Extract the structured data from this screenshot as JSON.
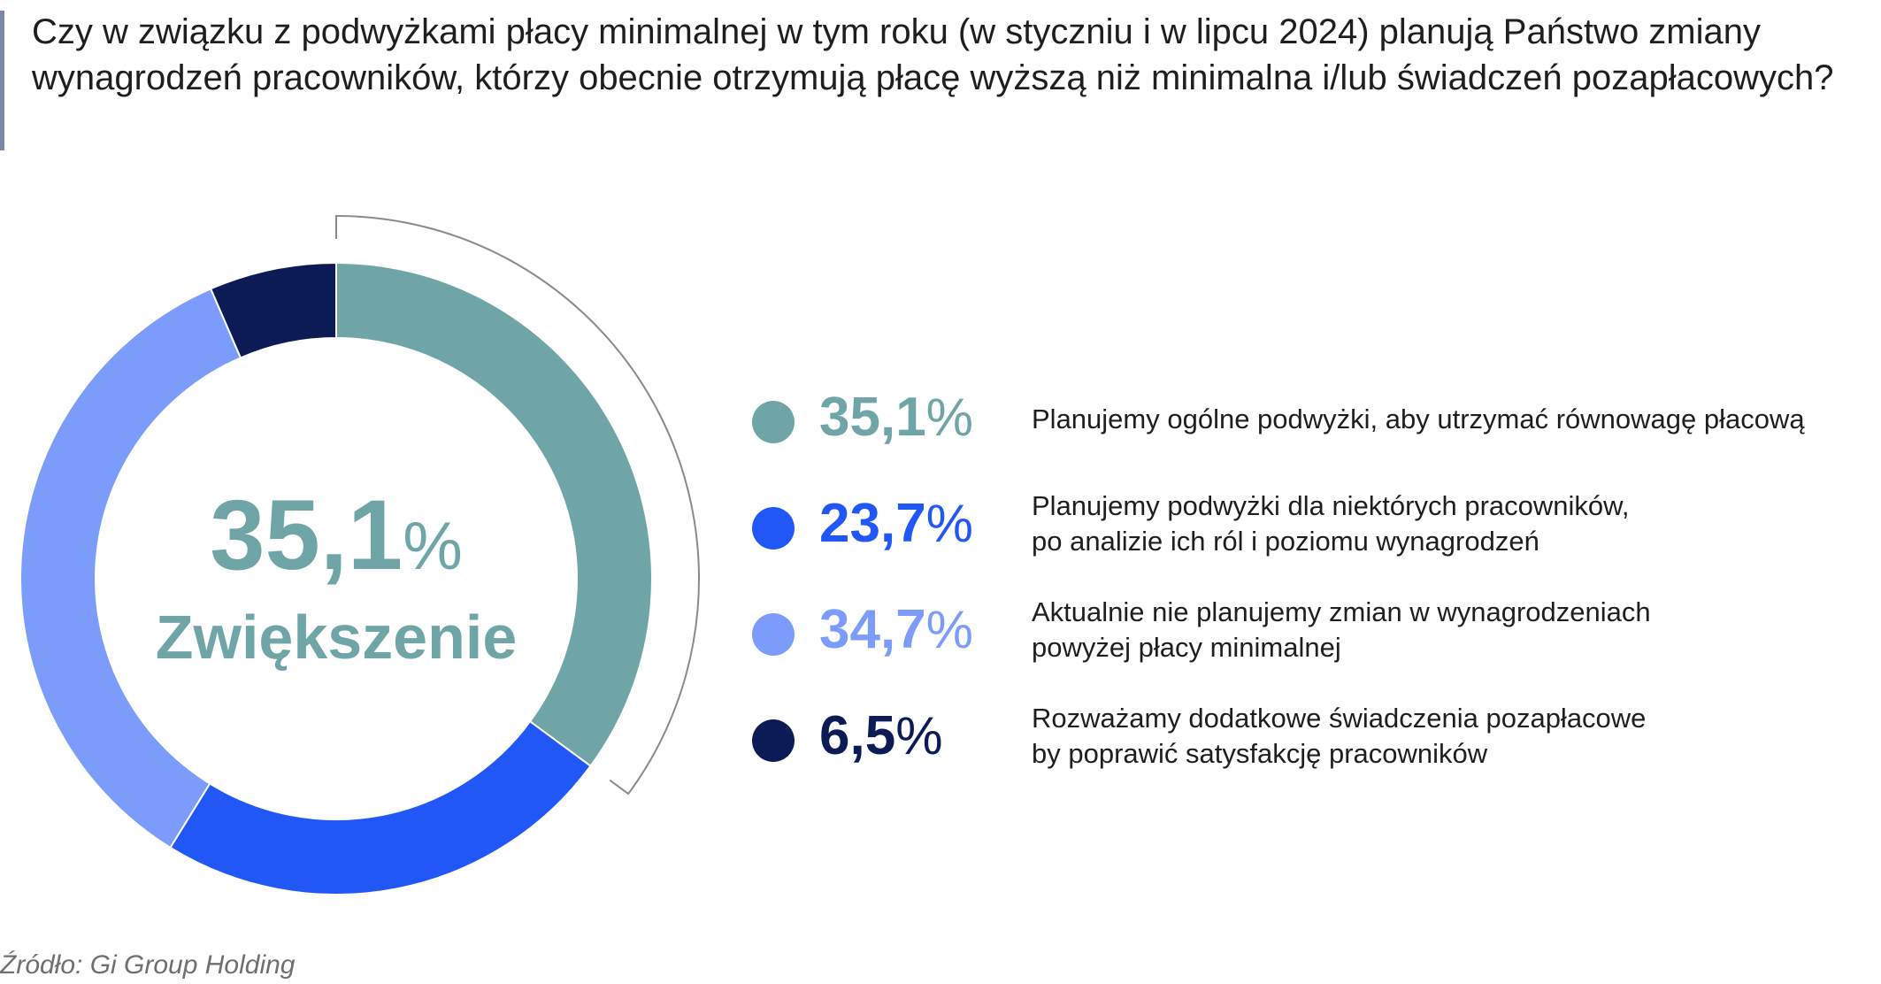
{
  "title": "Czy w związku z podwyżkami płacy minimalnej w tym roku (w styczniu i w lipcu 2024) planują Państwo zmiany wynagrodzeń pracowników, którzy obecnie otrzymują płacę wyższą niż minimalna i/lub świadczeń pozapłacowych?",
  "center": {
    "value": "35,1",
    "unit": "%",
    "label": "Zwiększenie"
  },
  "legend": [
    {
      "value": "35,1",
      "unit": "%",
      "lines": [
        "Planujemy ogólne podwyżki, aby utrzymać równowagę płacową"
      ]
    },
    {
      "value": "23,7",
      "unit": "%",
      "lines": [
        "Planujemy podwyżki dla niektórych pracowników,",
        "po analizie ich ról i poziomu wynagrodzeń"
      ]
    },
    {
      "value": "34,7",
      "unit": "%",
      "lines": [
        "Aktualnie nie planujemy zmian w wynagrodzeniach",
        "powyżej płacy minimalnej"
      ]
    },
    {
      "value": "6,5",
      "unit": "%",
      "lines": [
        "Rozważamy dodatkowe świadczenia pozapłacowe",
        "by poprawić satysfakcję pracowników"
      ]
    }
  ],
  "source": "Źródło: Gi Group Holding",
  "colors": {
    "teal": "#6fa5a7",
    "blue": "#2157f7",
    "light_blue": "#7b9cfa",
    "navy": "#0c1a56",
    "bracket": "#8a8a8a"
  },
  "chart_data": {
    "type": "pie",
    "variant": "donut",
    "categories": [
      "Planujemy ogólne podwyżki, aby utrzymać równowagę płacową",
      "Planujemy podwyżki dla niektórych pracowników, po analizie ich ról i poziomu wynagrodzeń",
      "Aktualnie nie planujemy zmian w wynagrodzeniach powyżej płacy minimalnej",
      "Rozważamy dodatkowe świadczenia pozapłacowe by poprawić satysfakcję pracowników"
    ],
    "values": [
      35.1,
      23.7,
      34.7,
      6.5
    ],
    "colors": [
      "#6fa5a7",
      "#2157f7",
      "#7b9cfa",
      "#0c1a56"
    ],
    "start": "12 o'clock",
    "direction": "clockwise",
    "highlighted_slice": 0,
    "legend_position": "right"
  }
}
